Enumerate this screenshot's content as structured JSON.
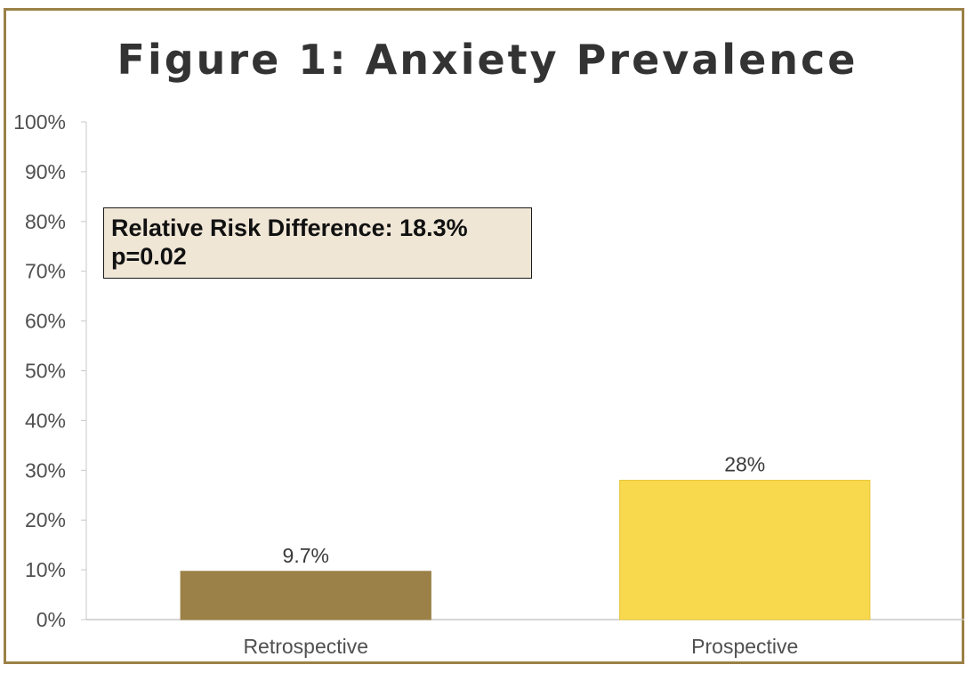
{
  "chart_data": {
    "type": "bar",
    "title": "Figure 1: Anxiety Prevalence",
    "categories": [
      "Retrospective",
      "Prospective"
    ],
    "values": [
      9.7,
      28
    ],
    "value_labels": [
      "9.7%",
      "28%"
    ],
    "bar_colors": [
      "#9b8147",
      "#f8d94d"
    ],
    "ylim": [
      0,
      100
    ],
    "yticks": [
      0,
      10,
      20,
      30,
      40,
      50,
      60,
      70,
      80,
      90,
      100
    ],
    "ytick_labels": [
      "0%",
      "10%",
      "20%",
      "30%",
      "40%",
      "50%",
      "60%",
      "70%",
      "80%",
      "90%",
      "100%"
    ],
    "xlabel": "",
    "ylabel": "",
    "grid": false,
    "legend": "none",
    "annotation": {
      "line1": "Relative Risk Difference: 18.3%",
      "line2": "p=0.02"
    }
  }
}
